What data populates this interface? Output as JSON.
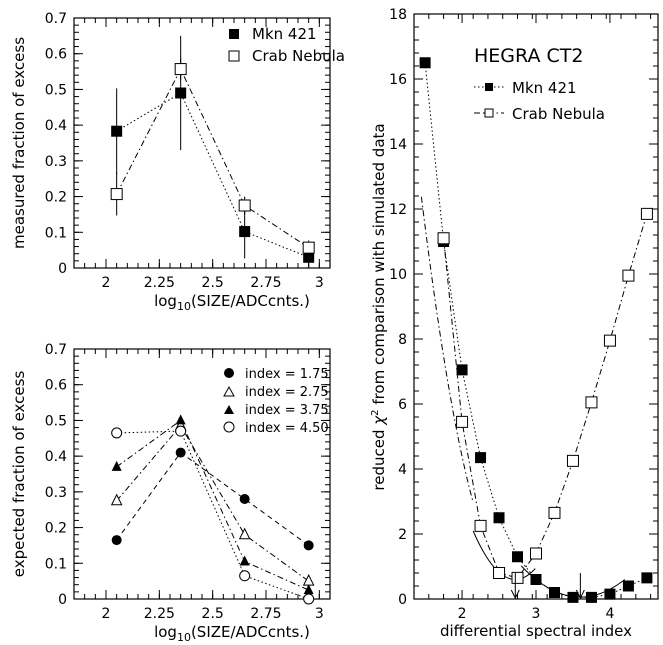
{
  "chart_data": [
    {
      "type": "scatter",
      "panel": "top-left",
      "xlabel_main": "log",
      "xlabel_sub": "10",
      "xlabel_rest": "(SIZE/ADCcnts.)",
      "ylabel": "measured fraction of excess",
      "xlim": [
        1.85,
        3.05
      ],
      "ylim": [
        0,
        0.7
      ],
      "xticks": [
        "2",
        "2.25",
        "2.5",
        "2.75",
        "3"
      ],
      "yticks": [
        "0",
        "0.1",
        "0.2",
        "0.3",
        "0.4",
        "0.5",
        "0.6",
        "0.7"
      ],
      "grid": false,
      "legend_position": "top-right",
      "series": [
        {
          "name": "Mkn 421",
          "marker": "filled-square",
          "line": "dotted",
          "x": [
            2.05,
            2.35,
            2.65,
            2.95
          ],
          "y": [
            0.383,
            0.49,
            0.102,
            0.03
          ],
          "yerr": [
            0.12,
            0.16,
            0.075,
            0.03
          ]
        },
        {
          "name": "Crab Nebula",
          "marker": "open-square",
          "line": "dash-dot",
          "x": [
            2.05,
            2.35,
            2.65,
            2.95
          ],
          "y": [
            0.207,
            0.557,
            0.175,
            0.057
          ],
          "yerr": [
            0.06,
            0.03,
            0.025,
            0.02
          ]
        }
      ]
    },
    {
      "type": "line",
      "panel": "bottom-left",
      "xlabel_main": "log",
      "xlabel_sub": "10",
      "xlabel_rest": "(SIZE/ADCcnts.)",
      "ylabel": "expected fraction of excess",
      "xlim": [
        1.85,
        3.05
      ],
      "ylim": [
        0,
        0.7
      ],
      "xticks": [
        "2",
        "2.25",
        "2.5",
        "2.75",
        "3"
      ],
      "yticks": [
        "0",
        "0.1",
        "0.2",
        "0.3",
        "0.4",
        "0.5",
        "0.6",
        "0.7"
      ],
      "grid": false,
      "legend_position": "top-right",
      "series": [
        {
          "name": "index = 1.75",
          "marker": "filled-circle",
          "line": "dashed",
          "x": [
            2.05,
            2.35,
            2.65,
            2.95
          ],
          "y": [
            0.165,
            0.41,
            0.28,
            0.15
          ]
        },
        {
          "name": "index = 2.75",
          "marker": "open-triangle",
          "line": "dash-dot",
          "x": [
            2.05,
            2.35,
            2.65,
            2.95
          ],
          "y": [
            0.275,
            0.485,
            0.18,
            0.05
          ]
        },
        {
          "name": "index = 3.75",
          "marker": "filled-triangle",
          "line": "dash-dot",
          "x": [
            2.05,
            2.35,
            2.65,
            2.95
          ],
          "y": [
            0.37,
            0.5,
            0.105,
            0.025
          ]
        },
        {
          "name": "index = 4.50",
          "marker": "open-circle",
          "line": "dotted",
          "x": [
            2.05,
            2.35,
            2.65,
            2.95
          ],
          "y": [
            0.465,
            0.47,
            0.065,
            0.0
          ]
        }
      ]
    },
    {
      "type": "line",
      "panel": "right",
      "title": "HEGRA CT2",
      "xlabel": "differential spectral index",
      "ylabel_pre": "reduced ",
      "ylabel_sym": "χ",
      "ylabel_sup": "2",
      "ylabel_post": " from comparison with simulated data",
      "xlim": [
        1.35,
        4.65
      ],
      "ylim": [
        0,
        18
      ],
      "xticks": [
        "2",
        "3",
        "4"
      ],
      "yticks": [
        "0",
        "2",
        "4",
        "6",
        "8",
        "10",
        "12",
        "14",
        "16",
        "18"
      ],
      "grid": false,
      "legend_position": "top-right",
      "series": [
        {
          "name": "Mkn 421",
          "marker": "filled-square",
          "line": "dotted",
          "x": [
            1.5,
            1.75,
            2.0,
            2.25,
            2.5,
            2.75,
            3.0,
            3.25,
            3.5,
            3.75,
            4.0,
            4.25,
            4.5
          ],
          "y": [
            16.5,
            11.0,
            7.05,
            4.35,
            2.5,
            1.3,
            0.6,
            0.2,
            0.05,
            0.05,
            0.15,
            0.4,
            0.65
          ]
        },
        {
          "name": "Crab Nebula",
          "marker": "open-square",
          "line": "dash-dot",
          "x": [
            1.75,
            2.0,
            2.25,
            2.5,
            2.75,
            3.0,
            3.25,
            3.5,
            3.75,
            4.0,
            4.25,
            4.5
          ],
          "y": [
            11.1,
            5.45,
            2.25,
            0.8,
            0.65,
            1.4,
            2.65,
            4.25,
            6.05,
            7.95,
            9.95,
            11.85
          ]
        }
      ],
      "fits": [
        {
          "name": "Crab parabola fit",
          "vertex_x": 2.72,
          "vertex_y": 0.6,
          "a": 4.6,
          "x_range": [
            2.15,
            3.0
          ],
          "style": "solid"
        },
        {
          "name": "Mkn 421 parabola fit",
          "vertex_x": 3.6,
          "vertex_y": 0.06,
          "a": 1.5,
          "x_range": [
            2.8,
            4.2
          ],
          "style": "solid"
        },
        {
          "name": "Crab smooth curve",
          "vertex_x": 2.72,
          "vertex_y": 0.6,
          "a": 7.3,
          "x_range": [
            1.45,
            2.15
          ],
          "style": "dash-dot"
        }
      ],
      "arrows": [
        {
          "x": 2.72,
          "y_from": 0.0,
          "y_to": 0.8
        },
        {
          "x": 3.6,
          "y_from": 0.0,
          "y_to": 0.8
        }
      ]
    }
  ]
}
